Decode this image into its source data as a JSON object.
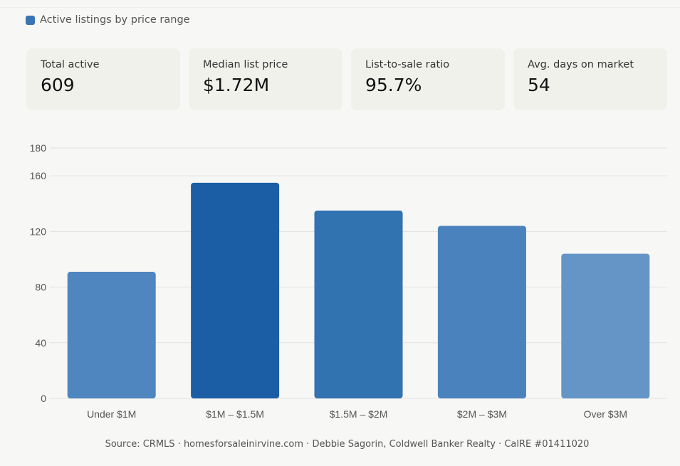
{
  "legend": {
    "label": "Active listings by price range",
    "color": "#3a74b3"
  },
  "stats": [
    {
      "label": "Total active",
      "value": "609"
    },
    {
      "label": "Median list price",
      "value": "$1.72M"
    },
    {
      "label": "List-to-sale ratio",
      "value": "95.7%"
    },
    {
      "label": "Avg. days on market",
      "value": "54"
    }
  ],
  "chart_data": {
    "type": "bar",
    "categories": [
      "Under $1M",
      "$1M – $1.5M",
      "$1.5M – $2M",
      "$2M – $3M",
      "Over $3M"
    ],
    "values": [
      91,
      155,
      135,
      124,
      104
    ],
    "colors": [
      "#4f86bf",
      "#1b5ea6",
      "#3172b0",
      "#4a82bd",
      "#6495c6"
    ],
    "yticks": [
      0,
      40,
      80,
      120,
      160,
      180
    ],
    "ylim": [
      0,
      180
    ],
    "grid": true,
    "series": [
      {
        "name": "Active listings by price range",
        "values": [
          91,
          155,
          135,
          124,
          104
        ]
      }
    ]
  },
  "source": "Source: CRMLS · homesforsaleinirvine.com · Debbie Sagorin, Coldwell Banker Realty · CalRE #01411020"
}
